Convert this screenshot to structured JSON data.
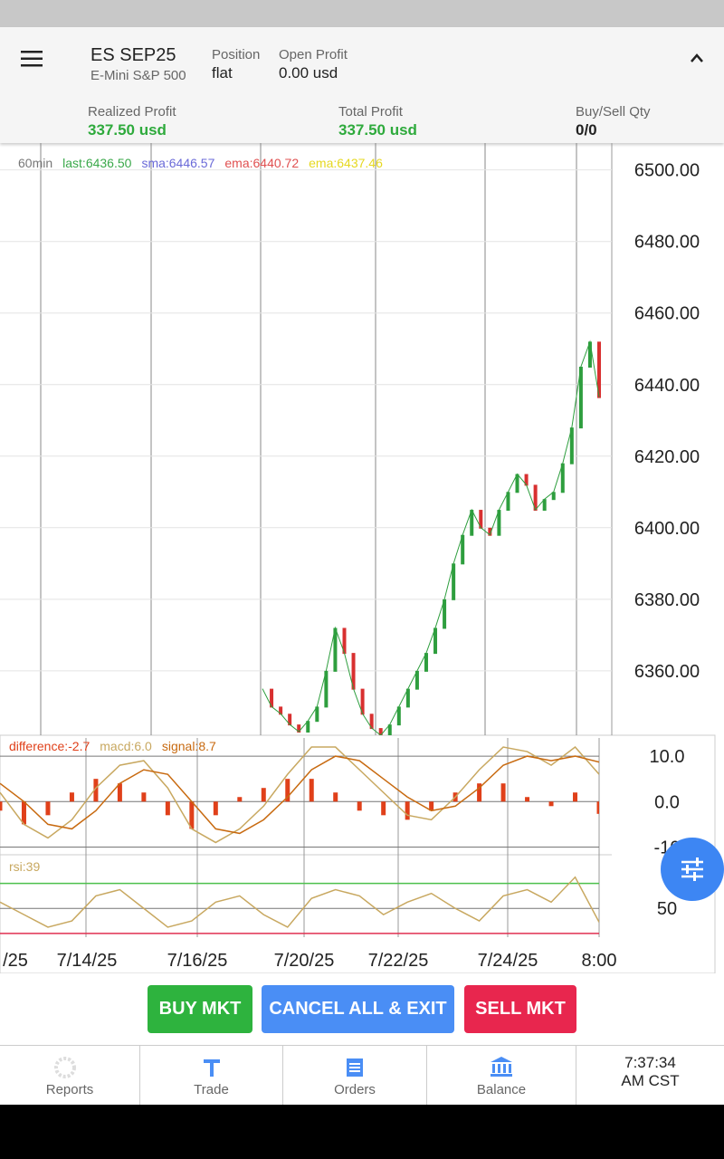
{
  "header": {
    "symbol": "ES SEP25",
    "description": "E-Mini S&P 500",
    "position_label": "Position",
    "position_value": "flat",
    "open_profit_label": "Open Profit",
    "open_profit_value": "0.00 usd"
  },
  "stats": [
    {
      "label": "Realized Profit",
      "value": "337.50 usd"
    },
    {
      "label": "Total Profit",
      "value": "337.50 usd"
    },
    {
      "label": "Buy/Sell Qty",
      "value": "0/0"
    }
  ],
  "price_chart": {
    "type": "line",
    "legend": [
      {
        "text": "60min",
        "color": "#777777"
      },
      {
        "text": "last:6436.50",
        "color": "#3aa84a"
      },
      {
        "text": "sma:6446.57",
        "color": "#6a6ad8"
      },
      {
        "text": "ema:6440.72",
        "color": "#e05050"
      },
      {
        "text": "ema:6437.46",
        "color": "#e6d820"
      }
    ],
    "ylim": [
      6342,
      6507
    ],
    "yticks": [
      {
        "value": 6360,
        "label": "6360.00"
      },
      {
        "value": 6380,
        "label": "6380.00"
      },
      {
        "value": 6400,
        "label": "6400.00"
      },
      {
        "value": 6420,
        "label": "6420.00"
      },
      {
        "value": 6440,
        "label": "6440.00"
      },
      {
        "value": 6460,
        "label": "6460.00"
      },
      {
        "value": 6480,
        "label": "6480.00"
      },
      {
        "value": 6500,
        "label": "6500.00"
      }
    ],
    "color": "#2e9e3e",
    "values": [
      6355,
      6350,
      6348,
      6345,
      6343,
      6346,
      6350,
      6360,
      6372,
      6365,
      6355,
      6348,
      6344,
      6342,
      6345,
      6350,
      6355,
      6360,
      6365,
      6372,
      6380,
      6390,
      6398,
      6405,
      6400,
      6398,
      6405,
      6410,
      6415,
      6412,
      6405,
      6408,
      6410,
      6418,
      6428,
      6445,
      6452,
      6436.5
    ]
  },
  "macd_chart": {
    "type": "line",
    "legend": [
      {
        "text": "difference:-2.7",
        "color": "#e0401a"
      },
      {
        "text": "macd:6.0",
        "color": "#c8a860"
      },
      {
        "text": "signal:8.7",
        "color": "#c86a10"
      }
    ],
    "ylim": [
      -11.5,
      14
    ],
    "yticks": [
      {
        "value": 10,
        "label": "10.0"
      },
      {
        "value": 0,
        "label": "0.0"
      },
      -10
    ],
    "series": [
      {
        "name": "difference",
        "color": "#e0401a",
        "values": [
          -2,
          -5,
          -3,
          2,
          5,
          4,
          2,
          -3,
          -6,
          -3,
          1,
          3,
          5,
          5,
          2,
          -2,
          -3,
          -4,
          -2,
          2,
          4,
          4,
          1,
          -1,
          2,
          -2.7
        ]
      },
      {
        "name": "macd",
        "color": "#c8a860",
        "values": [
          2,
          -5,
          -8,
          -4,
          3,
          8,
          9,
          3,
          -6,
          -9,
          -6,
          -1,
          6,
          12,
          12,
          7,
          2,
          -3,
          -4,
          1,
          7,
          12,
          11,
          8,
          12,
          6
        ]
      },
      {
        "name": "signal",
        "color": "#c86a10",
        "values": [
          4,
          0,
          -5,
          -6,
          -2,
          4,
          7,
          6,
          0,
          -6,
          -7,
          -4,
          1,
          7,
          10,
          9,
          5,
          1,
          -2,
          -1,
          3,
          8,
          10,
          9,
          10,
          8.7
        ]
      }
    ]
  },
  "rsi_chart": {
    "type": "line",
    "legend": [
      {
        "text": "rsi:39",
        "color": "#c8a860"
      }
    ],
    "ylim": [
      27,
      90
    ],
    "yticks": [
      50
    ],
    "levels": [
      {
        "value": 70,
        "color": "#4cc04c"
      },
      {
        "value": 30,
        "color": "#e03050"
      }
    ],
    "color": "#c8a860",
    "values": [
      55,
      45,
      35,
      40,
      60,
      65,
      50,
      35,
      40,
      55,
      60,
      45,
      35,
      58,
      65,
      60,
      45,
      55,
      62,
      50,
      40,
      60,
      65,
      55,
      75,
      39
    ]
  },
  "x_labels": [
    "/25",
    "7/14/25",
    "7/16/25",
    "7/20/25",
    "7/22/25",
    "7/24/25",
    "8:00"
  ],
  "buttons": [
    "BUY MKT",
    "CANCEL ALL & EXIT",
    "SELL MKT"
  ],
  "nav": [
    "Reports",
    "Trade",
    "Orders",
    "Balance"
  ],
  "clock": [
    "7:37:34",
    "AM CST"
  ]
}
